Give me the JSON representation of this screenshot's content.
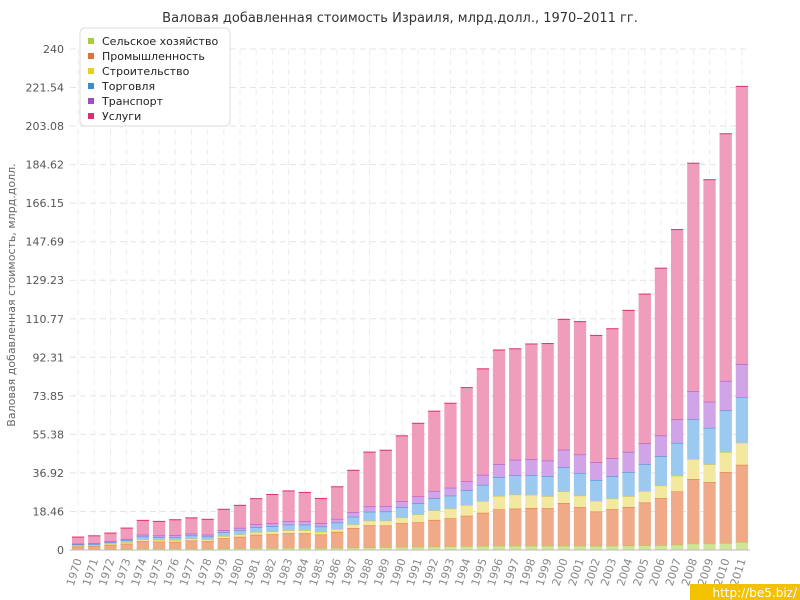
{
  "chart_data": {
    "type": "bar",
    "stacked": true,
    "title": "Валовая добавленная стоимость Израиля, млрд.долл., 1970–2011 гг.",
    "xlabel": "",
    "ylabel": "Валовая добавленная стоимость, млрд.долл.",
    "ylim": [
      0,
      240
    ],
    "yticks": [
      0,
      18.46,
      36.92,
      55.38,
      73.85,
      92.31,
      110.77,
      129.23,
      147.69,
      166.15,
      184.62,
      203.08,
      221.54,
      240
    ],
    "grid": true,
    "legend_position": "top-left",
    "categories": [
      "1970",
      "1971",
      "1972",
      "1973",
      "1974",
      "1975",
      "1976",
      "1977",
      "1978",
      "1979",
      "1980",
      "1981",
      "1982",
      "1983",
      "1984",
      "1985",
      "1986",
      "1987",
      "1988",
      "1989",
      "1990",
      "1991",
      "1992",
      "1993",
      "1994",
      "1995",
      "1996",
      "1997",
      "1998",
      "1999",
      "2000",
      "2001",
      "2002",
      "2003",
      "2004",
      "2005",
      "2006",
      "2007",
      "2008",
      "2009",
      "2010",
      "2011"
    ],
    "series": [
      {
        "name": "Сельское хозяйство",
        "color": "#a8cf38",
        "fill": "#cfe59a",
        "values": [
          0.3,
          0.3,
          0.4,
          0.5,
          0.6,
          0.6,
          0.6,
          0.6,
          0.6,
          0.7,
          0.8,
          0.9,
          0.9,
          1.0,
          1.0,
          0.9,
          1.0,
          1.1,
          1.2,
          1.3,
          1.4,
          1.5,
          1.6,
          1.7,
          1.8,
          1.9,
          2.0,
          2.0,
          2.0,
          2.0,
          2.0,
          2.0,
          1.9,
          2.0,
          2.1,
          2.2,
          2.3,
          2.5,
          3.0,
          3.0,
          3.3,
          3.8
        ]
      },
      {
        "name": "Промышленность",
        "color": "#e36f3c",
        "fill": "#f0aa88",
        "values": [
          1.3,
          1.5,
          1.9,
          2.5,
          3.6,
          3.4,
          3.3,
          3.9,
          3.6,
          4.9,
          5.5,
          6.4,
          6.6,
          7.0,
          7.0,
          6.5,
          7.7,
          9.4,
          10.6,
          10.4,
          11.4,
          11.7,
          12.8,
          13.4,
          14.6,
          15.9,
          17.4,
          17.8,
          18.1,
          18.0,
          20.5,
          18.5,
          16.5,
          17.5,
          18.5,
          20.5,
          22.5,
          25.5,
          31.0,
          29.5,
          34.0,
          37.0
        ]
      },
      {
        "name": "Строительство",
        "color": "#e6cf20",
        "fill": "#f3e8a0",
        "values": [
          0.4,
          0.4,
          0.5,
          0.7,
          0.8,
          0.8,
          0.8,
          0.9,
          0.8,
          1.0,
          1.1,
          1.2,
          1.3,
          1.4,
          1.4,
          1.2,
          1.3,
          1.7,
          2.2,
          2.3,
          2.7,
          3.8,
          4.5,
          4.7,
          5.1,
          5.6,
          6.4,
          6.7,
          6.3,
          5.7,
          5.5,
          5.5,
          5.1,
          5.1,
          5.1,
          5.5,
          6.0,
          7.5,
          9.5,
          8.5,
          9.5,
          10.5
        ]
      },
      {
        "name": "Торговля",
        "color": "#3a8cd4",
        "fill": "#9cc9f0",
        "values": [
          0.6,
          0.6,
          0.8,
          1.0,
          1.4,
          1.3,
          1.4,
          1.5,
          1.4,
          1.8,
          2.0,
          2.4,
          2.6,
          2.7,
          2.7,
          2.6,
          3.1,
          3.7,
          4.3,
          4.4,
          4.9,
          5.3,
          5.8,
          6.2,
          7.0,
          7.8,
          9.0,
          9.4,
          9.5,
          9.6,
          11.5,
          10.9,
          10.0,
          10.7,
          11.6,
          12.8,
          14.0,
          15.8,
          19.0,
          17.5,
          20.0,
          22.0
        ]
      },
      {
        "name": "Транспорт",
        "color": "#a14bc9",
        "fill": "#d1a4e8",
        "values": [
          0.4,
          0.4,
          0.5,
          0.6,
          0.9,
          0.8,
          0.9,
          0.9,
          0.9,
          1.1,
          1.2,
          1.4,
          1.5,
          1.6,
          1.6,
          1.5,
          1.8,
          2.2,
          2.5,
          2.6,
          3.0,
          3.3,
          3.6,
          3.8,
          4.3,
          4.8,
          6.2,
          7.3,
          7.6,
          7.5,
          8.5,
          8.8,
          8.5,
          8.7,
          9.7,
          10.0,
          10.0,
          11.2,
          13.5,
          12.5,
          14.2,
          15.7
        ]
      },
      {
        "name": "Услуги",
        "color": "#dd2f6f",
        "fill": "#f09cbd",
        "values": [
          3.2,
          3.6,
          4.0,
          5.2,
          6.9,
          6.8,
          7.5,
          7.6,
          7.4,
          10.0,
          10.8,
          12.3,
          13.7,
          14.6,
          13.9,
          12.0,
          15.4,
          20.1,
          26.1,
          26.8,
          31.3,
          35.1,
          38.2,
          40.5,
          45.0,
          50.8,
          54.8,
          53.2,
          55.2,
          56.1,
          62.5,
          63.7,
          60.8,
          62.0,
          67.8,
          71.6,
          80.2,
          91.0,
          109.3,
          106.4,
          118.4,
          133.1
        ]
      }
    ]
  },
  "watermark": "http://be5.biz/"
}
